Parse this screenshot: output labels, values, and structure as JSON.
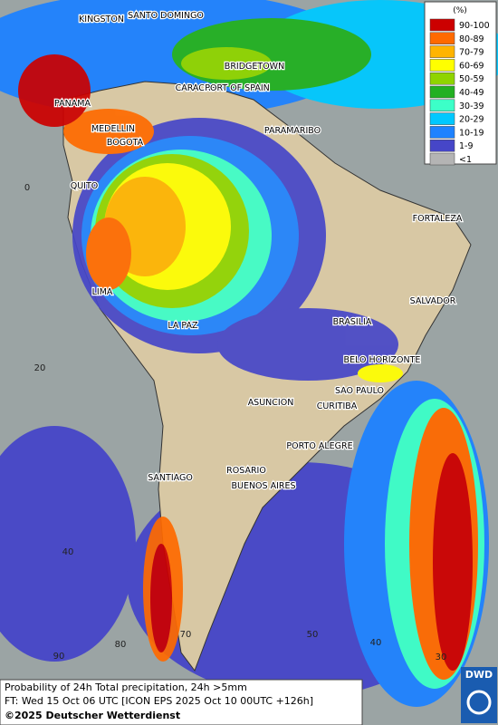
{
  "map": {
    "legend": {
      "title": "(%)",
      "entries": [
        {
          "label": "90-100",
          "color": "#cc0000"
        },
        {
          "label": "80-89",
          "color": "#ff6a00"
        },
        {
          "label": "70-79",
          "color": "#ffb400"
        },
        {
          "label": "60-69",
          "color": "#ffff00"
        },
        {
          "label": "50-59",
          "color": "#8fd400"
        },
        {
          "label": "40-49",
          "color": "#22b022"
        },
        {
          "label": "30-39",
          "color": "#3cffc8"
        },
        {
          "label": "20-29",
          "color": "#00c8ff"
        },
        {
          "label": "10-19",
          "color": "#1e82ff"
        },
        {
          "label": "1-9",
          "color": "#4646c8"
        },
        {
          "label": "<1",
          "color": "#b4b4b4"
        }
      ]
    },
    "cities": [
      "KINGSTON",
      "SANTO DOMINGO",
      "BRIDGETOWN",
      "CARACAS",
      "PORT OF SPAIN",
      "PANAMA",
      "MEDELLIN",
      "BOGOTA",
      "PARAMARIBO",
      "QUITO",
      "FORTALEZA",
      "LIMA",
      "SALVADOR",
      "LA PAZ",
      "BRASILIA",
      "BELO HORIZONTE",
      "SAO PAULO",
      "ASUNCION",
      "CURITIBA",
      "PORTO ALEGRE",
      "ROSARIO",
      "BUENOS AIRES",
      "SANTIAGO"
    ],
    "grid_labels": [
      "0",
      "20",
      "40",
      "90",
      "80",
      "70",
      "50",
      "40",
      "30"
    ],
    "footer": {
      "line1": "Probability of 24h Total precipitation, 24h >5mm",
      "line2": "FT: Wed 15 Oct 06 UTC [ICON EPS 2025 Oct 10 00UTC +126h]",
      "copyright": "©2025 Deutscher Wetterdienst"
    },
    "logo": "DWD"
  }
}
